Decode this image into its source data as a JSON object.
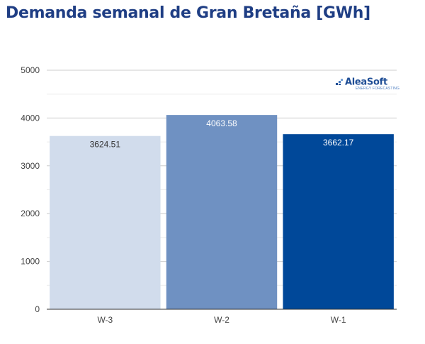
{
  "title": "Demanda semanal de Gran Bretaña [GWh]",
  "logo": {
    "name": "AleaSoft",
    "tagline": "ENERGY FORECASTING"
  },
  "chart_data": {
    "type": "bar",
    "title": "Demanda semanal de Gran Bretaña [GWh]",
    "xlabel": "",
    "ylabel": "",
    "categories": [
      "W-3",
      "W-2",
      "W-1"
    ],
    "values": [
      3624.51,
      4063.58,
      3662.17
    ],
    "data_labels": [
      "3624.51",
      "4063.58",
      "3662.17"
    ],
    "bar_colors": [
      "#d1dcec",
      "#6f91c2",
      "#004899"
    ],
    "label_colors": [
      "#333333",
      "#ffffff",
      "#ffffff"
    ],
    "ylim": [
      0,
      5000
    ],
    "yticks": [
      0,
      1000,
      2000,
      3000,
      4000,
      5000
    ],
    "grid": true,
    "legend": "none"
  }
}
